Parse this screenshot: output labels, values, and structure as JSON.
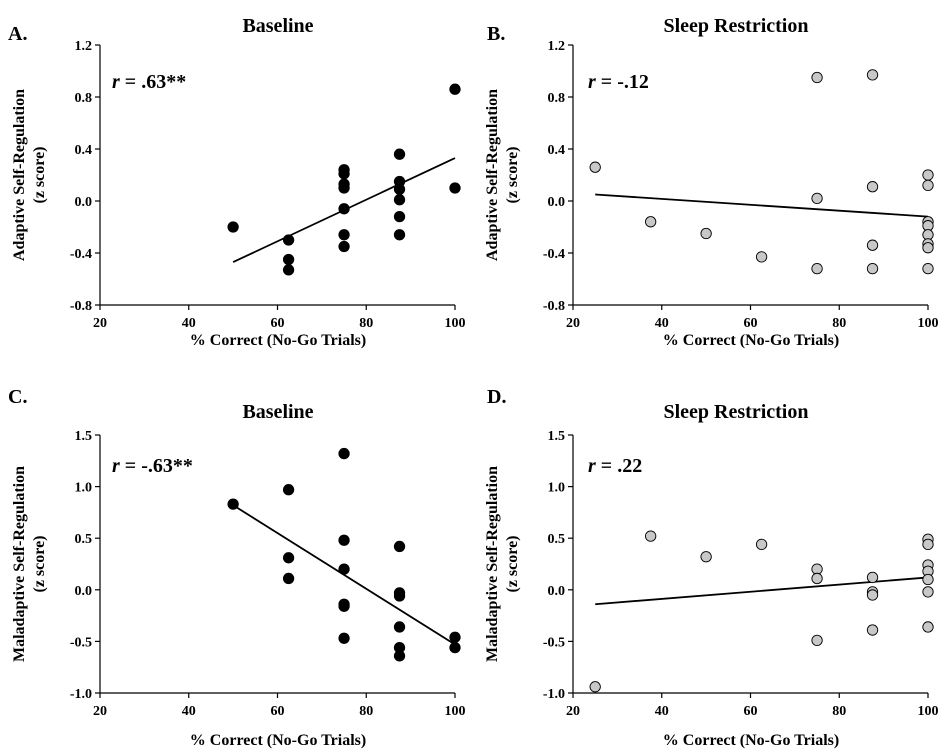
{
  "chart_data": [
    {
      "type": "scatter",
      "panel_letter": "A.",
      "title": "Baseline",
      "xlabel": "% Correct (No-Go Trials)",
      "ylabel": "Adaptive Self-Regulation",
      "ylabel_sub": "(z score)",
      "xlim": [
        20,
        100
      ],
      "ylim": [
        -0.8,
        1.2
      ],
      "xticks": [
        20,
        40,
        60,
        80,
        100
      ],
      "yticks": [
        -0.8,
        -0.4,
        0.0,
        0.4,
        0.8,
        1.2
      ],
      "ytick_labels": [
        "-0.8",
        "-0.4",
        "0.0",
        "0.4",
        "0.8",
        "1.2"
      ],
      "stat_r": "r",
      "stat_value": " = .63**",
      "marker_fill": "#000000",
      "points": [
        [
          50,
          -0.2
        ],
        [
          62.5,
          -0.3
        ],
        [
          62.5,
          -0.45
        ],
        [
          62.5,
          -0.53
        ],
        [
          75,
          0.24
        ],
        [
          75,
          0.21
        ],
        [
          75,
          0.13
        ],
        [
          75,
          0.1
        ],
        [
          75,
          -0.06
        ],
        [
          75,
          -0.26
        ],
        [
          75,
          -0.35
        ],
        [
          87.5,
          0.36
        ],
        [
          87.5,
          0.15
        ],
        [
          87.5,
          0.09
        ],
        [
          87.5,
          0.01
        ],
        [
          87.5,
          -0.12
        ],
        [
          87.5,
          -0.26
        ],
        [
          100,
          0.86
        ],
        [
          100,
          0.1
        ]
      ],
      "trend": [
        [
          50,
          -0.47
        ],
        [
          100,
          0.33
        ]
      ]
    },
    {
      "type": "scatter",
      "panel_letter": "B.",
      "title": "Sleep Restriction",
      "xlabel": "% Correct (No-Go Trials)",
      "ylabel": "Adaptive Self-Regulation",
      "ylabel_sub": "(z score)",
      "xlim": [
        20,
        100
      ],
      "ylim": [
        -0.8,
        1.2
      ],
      "xticks": [
        20,
        40,
        60,
        80,
        100
      ],
      "yticks": [
        -0.8,
        -0.4,
        0.0,
        0.4,
        0.8,
        1.2
      ],
      "ytick_labels": [
        "-0.8",
        "-0.4",
        "0.0",
        "0.4",
        "0.8",
        "1.2"
      ],
      "stat_r": "r",
      "stat_value": " = -.12",
      "marker_fill": "#c8c8c8",
      "points": [
        [
          25,
          0.26
        ],
        [
          37.5,
          -0.16
        ],
        [
          50,
          -0.25
        ],
        [
          62.5,
          -0.43
        ],
        [
          75,
          0.95
        ],
        [
          75,
          0.02
        ],
        [
          75,
          -0.52
        ],
        [
          87.5,
          0.97
        ],
        [
          87.5,
          0.11
        ],
        [
          87.5,
          -0.34
        ],
        [
          87.5,
          -0.52
        ],
        [
          100,
          0.2
        ],
        [
          100,
          0.12
        ],
        [
          100,
          -0.16
        ],
        [
          100,
          -0.19
        ],
        [
          100,
          -0.26
        ],
        [
          100,
          -0.33
        ],
        [
          100,
          -0.36
        ],
        [
          100,
          -0.52
        ]
      ],
      "trend": [
        [
          25,
          0.05
        ],
        [
          100,
          -0.12
        ]
      ]
    },
    {
      "type": "scatter",
      "panel_letter": "C.",
      "title": "Baseline",
      "xlabel": "% Correct (No-Go Trials)",
      "ylabel": "Maladaptive Self-Regulation",
      "ylabel_sub": "(z score)",
      "xlim": [
        20,
        100
      ],
      "ylim": [
        -1.0,
        1.5
      ],
      "xticks": [
        20,
        40,
        60,
        80,
        100
      ],
      "yticks": [
        -1.0,
        -0.5,
        0.0,
        0.5,
        1.0,
        1.5
      ],
      "ytick_labels": [
        "-1.0",
        "-0.5",
        "0.0",
        "0.5",
        "1.0",
        "1.5"
      ],
      "stat_r": "r",
      "stat_value": " = -.63**",
      "marker_fill": "#000000",
      "points": [
        [
          50,
          0.83
        ],
        [
          62.5,
          0.97
        ],
        [
          62.5,
          0.31
        ],
        [
          62.5,
          0.11
        ],
        [
          75,
          1.32
        ],
        [
          75,
          0.48
        ],
        [
          75,
          0.2
        ],
        [
          75,
          -0.14
        ],
        [
          75,
          -0.16
        ],
        [
          75,
          -0.47
        ],
        [
          87.5,
          0.42
        ],
        [
          87.5,
          -0.03
        ],
        [
          87.5,
          -0.06
        ],
        [
          87.5,
          -0.36
        ],
        [
          87.5,
          -0.56
        ],
        [
          87.5,
          -0.64
        ],
        [
          100,
          -0.46
        ],
        [
          100,
          -0.56
        ]
      ],
      "trend": [
        [
          50,
          0.82
        ],
        [
          100,
          -0.53
        ]
      ]
    },
    {
      "type": "scatter",
      "panel_letter": "D.",
      "title": "Sleep Restriction",
      "xlabel": "% Correct (No-Go Trials)",
      "ylabel": "Maladaptive Self-Regulation",
      "ylabel_sub": "(z score)",
      "xlim": [
        20,
        100
      ],
      "ylim": [
        -1.0,
        1.5
      ],
      "xticks": [
        20,
        40,
        60,
        80,
        100
      ],
      "yticks": [
        -1.0,
        -0.5,
        0.0,
        0.5,
        1.0,
        1.5
      ],
      "ytick_labels": [
        "-1.0",
        "-0.5",
        "0.0",
        "0.5",
        "1.0",
        "1.5"
      ],
      "stat_r": "r",
      "stat_value": " = .22",
      "marker_fill": "#c8c8c8",
      "points": [
        [
          25,
          -0.94
        ],
        [
          37.5,
          0.52
        ],
        [
          50,
          0.32
        ],
        [
          62.5,
          0.44
        ],
        [
          75,
          0.2
        ],
        [
          75,
          0.11
        ],
        [
          75,
          -0.49
        ],
        [
          87.5,
          0.12
        ],
        [
          87.5,
          -0.02
        ],
        [
          87.5,
          -0.05
        ],
        [
          87.5,
          -0.39
        ],
        [
          100,
          0.49
        ],
        [
          100,
          0.44
        ],
        [
          100,
          0.24
        ],
        [
          100,
          0.18
        ],
        [
          100,
          0.1
        ],
        [
          100,
          -0.02
        ],
        [
          100,
          -0.36
        ]
      ],
      "trend": [
        [
          25,
          -0.14
        ],
        [
          100,
          0.12
        ]
      ]
    }
  ]
}
